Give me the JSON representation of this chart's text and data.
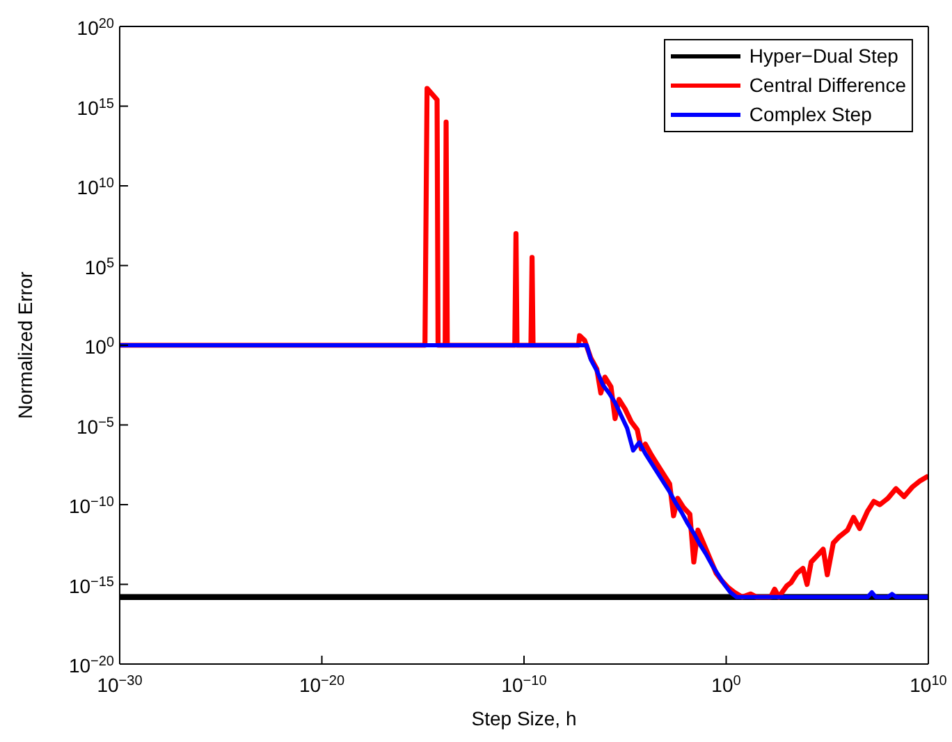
{
  "chart_data": {
    "type": "line",
    "xlabel": "Step Size, h",
    "ylabel": "Normalized Error",
    "log": "xy",
    "legend": "top right",
    "marker": "none",
    "line_style": "solid",
    "xlim": [
      1e-30,
      10000000000.0
    ],
    "ylim": [
      1e-20,
      1e+20
    ],
    "xticks": [
      {
        "value": 1e-30,
        "label": "10$^{−30}$"
      },
      {
        "value": 1e-20,
        "label": "10$^{−20}$"
      },
      {
        "value": 1e-10,
        "label": "10$^{−10}$"
      },
      {
        "value": 1,
        "label": "10$^{0}$"
      },
      {
        "value": 10000000000.0,
        "label": "10$^{10}$"
      }
    ],
    "yticks": [
      {
        "value": 1e-20,
        "label": "10$^{−20}$"
      },
      {
        "value": 1e-15,
        "label": "10$^{−15}$"
      },
      {
        "value": 1e-10,
        "label": "10$^{−10}$"
      },
      {
        "value": 1e-05,
        "label": "10$^{−5}$"
      },
      {
        "value": 1,
        "label": "10$^{0}$"
      },
      {
        "value": 100000.0,
        "label": "10$^{5}$"
      },
      {
        "value": 10000000000.0,
        "label": "10$^{10}$"
      },
      {
        "value": 1000000000000000.0,
        "label": "10$^{15}$"
      },
      {
        "value": 1e+20,
        "label": "10$^{20}$"
      }
    ],
    "series": [
      {
        "name": "Hyper−Dual Step",
        "color": "#000000",
        "x": [
          1e-30,
          10000000000.0
        ],
        "values": [
          1.6e-16,
          1.6e-16
        ]
      },
      {
        "name": "Central Difference",
        "color": "#ff0000",
        "x": [
          1e-30,
          1.26e-15,
          1.6e-15,
          5e-15,
          5.6e-15,
          1.26e-14,
          1.4e-14,
          1.6e-14,
          3.5e-11,
          4e-11,
          4.5e-11,
          2.2e-10,
          2.5e-10,
          2.8e-10,
          5e-08,
          5.6e-08,
          1e-07,
          2e-07,
          4e-07,
          6.3e-07,
          1e-06,
          2e-06,
          3.2e-06,
          5e-06,
          1e-05,
          2e-05,
          4e-05,
          6.3e-05,
          0.0001,
          0.0002,
          0.0004,
          0.0008,
          0.0016,
          0.0025,
          0.004,
          0.008,
          0.016,
          0.025,
          0.04,
          0.08,
          0.16,
          0.32,
          0.63,
          1.26,
          2.5,
          6.3,
          16,
          32,
          160,
          250,
          400,
          1000,
          1600,
          3200,
          6300,
          10000.0,
          16000.0,
          32000.0,
          63000.0,
          100000.0,
          200000.0,
          400000.0,
          1000000.0,
          2000000.0,
          4000000.0,
          10000000.0,
          20000000.0,
          40000000.0,
          100000000.0,
          250000000.0,
          630000000.0,
          1600000000.0,
          4000000000.0,
          10000000000.0
        ],
        "values": [
          1,
          1,
          1.3e+16,
          2500000000000000.0,
          1,
          1,
          100000000000000.0,
          1,
          1,
          10000000.0,
          1,
          1,
          320000.0,
          1,
          1,
          4,
          2,
          0.16,
          0.032,
          0.001,
          0.01,
          0.0025,
          2.5e-05,
          0.0004,
          0.0001,
          1.6e-05,
          5e-06,
          3.2e-07,
          6.3e-07,
          1.3e-07,
          3.2e-08,
          8e-09,
          2e-09,
          2e-11,
          2.5e-10,
          6.3e-11,
          2.5e-11,
          2.5e-14,
          2.5e-12,
          3.2e-13,
          4e-14,
          5e-15,
          1.6e-15,
          6.3e-16,
          3.2e-16,
          1.6e-16,
          2.5e-16,
          1.6e-16,
          1.6e-16,
          5e-16,
          1.6e-16,
          8e-16,
          1.26e-15,
          5e-15,
          1e-14,
          1e-15,
          2.5e-14,
          6.3e-14,
          1.6e-13,
          4e-15,
          4e-13,
          1e-12,
          2.5e-12,
          1.6e-11,
          3.2e-12,
          4e-11,
          1.6e-10,
          1e-10,
          2.5e-10,
          1e-09,
          3.2e-10,
          1.26e-09,
          3.2e-09,
          6.3e-09
        ]
      },
      {
        "name": "Complex Step",
        "color": "#0000ff",
        "x": [
          1e-30,
          1.26e-07,
          2e-07,
          4e-07,
          8e-07,
          1.6e-06,
          3.2e-06,
          6.3e-06,
          1.26e-05,
          2.5e-05,
          5e-05,
          0.0001,
          0.0002,
          0.0004,
          0.0008,
          0.0016,
          0.0032,
          0.0063,
          0.0126,
          0.025,
          0.05,
          0.1,
          0.2,
          0.4,
          0.8,
          1.6,
          3.2,
          10000000.0,
          16000000.0,
          25000000.0,
          100000000.0,
          160000000.0,
          250000000.0,
          10000000000.0
        ],
        "values": [
          1,
          1,
          0.13,
          0.025,
          0.0032,
          0.001,
          0.00025,
          4e-05,
          6.3e-06,
          2.5e-07,
          8e-07,
          1.6e-07,
          4e-08,
          1e-08,
          2.5e-09,
          6.3e-10,
          1.26e-10,
          3.2e-11,
          6.3e-12,
          1.6e-12,
          3.2e-13,
          8e-14,
          1.6e-14,
          4e-15,
          1e-15,
          3.2e-16,
          1.6e-16,
          1.6e-16,
          3.2e-16,
          1.6e-16,
          1.6e-16,
          2.5e-16,
          1.6e-16,
          1.6e-16
        ]
      }
    ]
  }
}
